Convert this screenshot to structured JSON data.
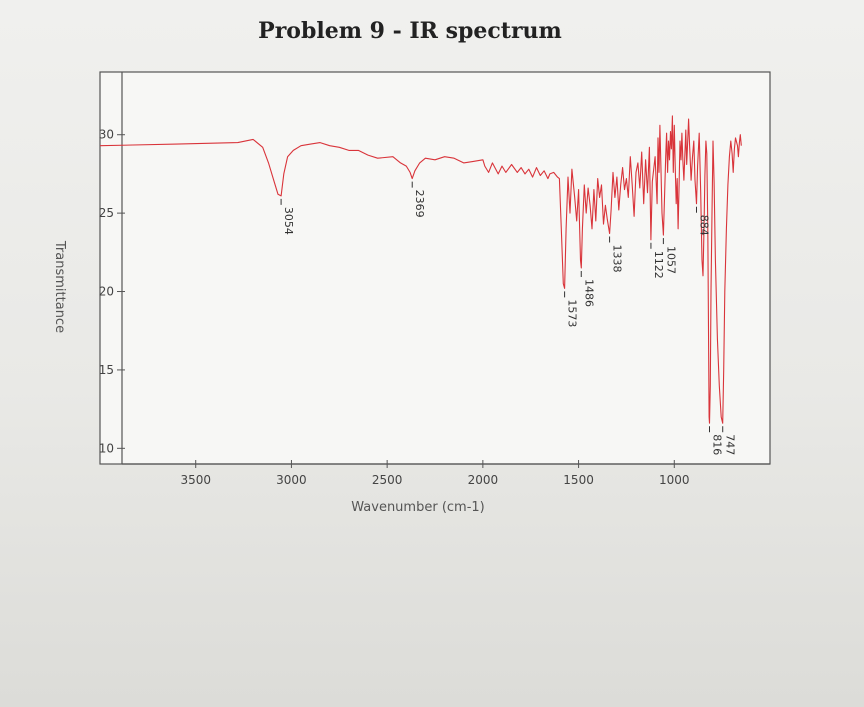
{
  "chart_data": {
    "type": "line",
    "title": "Problem 9 - IR spectrum",
    "xlabel": "Wavenumber (cm-1)",
    "ylabel": "Transmittance",
    "xlim": [
      4000,
      500
    ],
    "ylim": [
      9,
      34
    ],
    "x_ticks": [
      3500,
      3000,
      2500,
      2000,
      1500,
      1000
    ],
    "y_ticks": [
      10,
      15,
      20,
      25,
      30
    ],
    "grid": false,
    "series": [
      {
        "color": "#d9343a",
        "points": [
          [
            4000,
            29.3
          ],
          [
            3600,
            29.4
          ],
          [
            3280,
            29.5
          ],
          [
            3200,
            29.7
          ],
          [
            3150,
            29.2
          ],
          [
            3120,
            28.2
          ],
          [
            3090,
            27.0
          ],
          [
            3070,
            26.2
          ],
          [
            3054,
            26.1
          ],
          [
            3040,
            27.5
          ],
          [
            3020,
            28.6
          ],
          [
            2990,
            29.0
          ],
          [
            2950,
            29.3
          ],
          [
            2900,
            29.4
          ],
          [
            2850,
            29.5
          ],
          [
            2800,
            29.3
          ],
          [
            2750,
            29.2
          ],
          [
            2700,
            29.0
          ],
          [
            2650,
            29.0
          ],
          [
            2600,
            28.7
          ],
          [
            2550,
            28.5
          ],
          [
            2470,
            28.6
          ],
          [
            2430,
            28.2
          ],
          [
            2400,
            28.0
          ],
          [
            2380,
            27.6
          ],
          [
            2369,
            27.2
          ],
          [
            2355,
            27.7
          ],
          [
            2330,
            28.2
          ],
          [
            2300,
            28.5
          ],
          [
            2250,
            28.4
          ],
          [
            2200,
            28.6
          ],
          [
            2150,
            28.5
          ],
          [
            2100,
            28.2
          ],
          [
            2050,
            28.3
          ],
          [
            2000,
            28.4
          ],
          [
            1990,
            28.0
          ],
          [
            1970,
            27.6
          ],
          [
            1950,
            28.2
          ],
          [
            1920,
            27.5
          ],
          [
            1900,
            28.0
          ],
          [
            1880,
            27.6
          ],
          [
            1850,
            28.1
          ],
          [
            1820,
            27.6
          ],
          [
            1800,
            27.9
          ],
          [
            1780,
            27.5
          ],
          [
            1760,
            27.8
          ],
          [
            1740,
            27.3
          ],
          [
            1720,
            27.9
          ],
          [
            1700,
            27.4
          ],
          [
            1680,
            27.7
          ],
          [
            1660,
            27.2
          ],
          [
            1650,
            27.5
          ],
          [
            1630,
            27.6
          ],
          [
            1610,
            27.3
          ],
          [
            1600,
            27.2
          ],
          [
            1590,
            24.0
          ],
          [
            1580,
            20.5
          ],
          [
            1573,
            20.2
          ],
          [
            1565,
            24.0
          ],
          [
            1555,
            27.3
          ],
          [
            1545,
            25.0
          ],
          [
            1535,
            27.8
          ],
          [
            1520,
            26.0
          ],
          [
            1510,
            24.5
          ],
          [
            1500,
            26.5
          ],
          [
            1490,
            22.0
          ],
          [
            1486,
            21.5
          ],
          [
            1480,
            24.0
          ],
          [
            1470,
            26.8
          ],
          [
            1460,
            25.0
          ],
          [
            1450,
            26.6
          ],
          [
            1440,
            25.5
          ],
          [
            1430,
            24.0
          ],
          [
            1420,
            26.5
          ],
          [
            1410,
            24.5
          ],
          [
            1400,
            27.2
          ],
          [
            1390,
            26.0
          ],
          [
            1380,
            26.8
          ],
          [
            1370,
            24.3
          ],
          [
            1360,
            25.5
          ],
          [
            1350,
            24.6
          ],
          [
            1338,
            23.7
          ],
          [
            1330,
            25.2
          ],
          [
            1320,
            27.6
          ],
          [
            1310,
            26.0
          ],
          [
            1300,
            27.3
          ],
          [
            1290,
            25.2
          ],
          [
            1280,
            26.8
          ],
          [
            1270,
            27.9
          ],
          [
            1260,
            26.5
          ],
          [
            1250,
            27.2
          ],
          [
            1240,
            26.0
          ],
          [
            1230,
            28.6
          ],
          [
            1220,
            26.8
          ],
          [
            1210,
            24.8
          ],
          [
            1200,
            27.6
          ],
          [
            1190,
            28.2
          ],
          [
            1180,
            26.6
          ],
          [
            1170,
            28.9
          ],
          [
            1160,
            25.6
          ],
          [
            1150,
            28.4
          ],
          [
            1140,
            26.3
          ],
          [
            1130,
            29.2
          ],
          [
            1122,
            23.3
          ],
          [
            1115,
            27.0
          ],
          [
            1100,
            28.6
          ],
          [
            1090,
            25.6
          ],
          [
            1085,
            29.8
          ],
          [
            1080,
            27.6
          ],
          [
            1075,
            30.6
          ],
          [
            1070,
            28.0
          ],
          [
            1064,
            25.0
          ],
          [
            1057,
            23.6
          ],
          [
            1050,
            26.4
          ],
          [
            1045,
            28.6
          ],
          [
            1040,
            30.1
          ],
          [
            1035,
            27.6
          ],
          [
            1030,
            29.6
          ],
          [
            1025,
            28.4
          ],
          [
            1020,
            30.2
          ],
          [
            1015,
            29.1
          ],
          [
            1010,
            31.2
          ],
          [
            1005,
            27.6
          ],
          [
            1000,
            30.6
          ],
          [
            995,
            28.0
          ],
          [
            990,
            25.6
          ],
          [
            985,
            27.2
          ],
          [
            980,
            24.0
          ],
          [
            975,
            26.8
          ],
          [
            970,
            29.6
          ],
          [
            965,
            28.4
          ],
          [
            960,
            30.1
          ],
          [
            955,
            28.3
          ],
          [
            950,
            27.1
          ],
          [
            945,
            28.6
          ],
          [
            940,
            30.3
          ],
          [
            935,
            28.1
          ],
          [
            930,
            29.6
          ],
          [
            925,
            31.0
          ],
          [
            920,
            29.3
          ],
          [
            912,
            27.1
          ],
          [
            905,
            28.6
          ],
          [
            898,
            29.6
          ],
          [
            892,
            27.1
          ],
          [
            884,
            25.6
          ],
          [
            878,
            28.0
          ],
          [
            870,
            30.1
          ],
          [
            862,
            26.3
          ],
          [
            855,
            22.0
          ],
          [
            850,
            21.0
          ],
          [
            845,
            24.0
          ],
          [
            840,
            27.4
          ],
          [
            835,
            29.6
          ],
          [
            830,
            28.8
          ],
          [
            825,
            24.0
          ],
          [
            818,
            12.0
          ],
          [
            816,
            11.6
          ],
          [
            812,
            14.0
          ],
          [
            808,
            20.0
          ],
          [
            803,
            25.0
          ],
          [
            798,
            29.6
          ],
          [
            792,
            27.0
          ],
          [
            785,
            22.0
          ],
          [
            775,
            17.0
          ],
          [
            765,
            14.0
          ],
          [
            755,
            12.0
          ],
          [
            747,
            11.6
          ],
          [
            742,
            15.0
          ],
          [
            736,
            20.0
          ],
          [
            728,
            24.0
          ],
          [
            720,
            26.8
          ],
          [
            712,
            28.6
          ],
          [
            705,
            29.6
          ],
          [
            698,
            28.8
          ],
          [
            692,
            27.6
          ],
          [
            686,
            29.1
          ],
          [
            680,
            29.8
          ],
          [
            670,
            29.3
          ],
          [
            665,
            28.6
          ],
          [
            660,
            29.5
          ],
          [
            655,
            30.0
          ],
          [
            650,
            29.3
          ]
        ]
      }
    ],
    "peaks": [
      {
        "x": 3054,
        "y": 26.1,
        "label": "3054"
      },
      {
        "x": 2369,
        "y": 27.2,
        "label": "2369"
      },
      {
        "x": 1573,
        "y": 20.2,
        "label": "1573"
      },
      {
        "x": 1486,
        "y": 21.5,
        "label": "1486"
      },
      {
        "x": 1338,
        "y": 23.7,
        "label": "1338"
      },
      {
        "x": 1122,
        "y": 23.3,
        "label": "1122"
      },
      {
        "x": 1057,
        "y": 23.6,
        "label": "1057"
      },
      {
        "x": 884,
        "y": 25.6,
        "label": "884"
      },
      {
        "x": 816,
        "y": 11.6,
        "label": "816"
      },
      {
        "x": 747,
        "y": 11.6,
        "label": "747"
      }
    ]
  }
}
